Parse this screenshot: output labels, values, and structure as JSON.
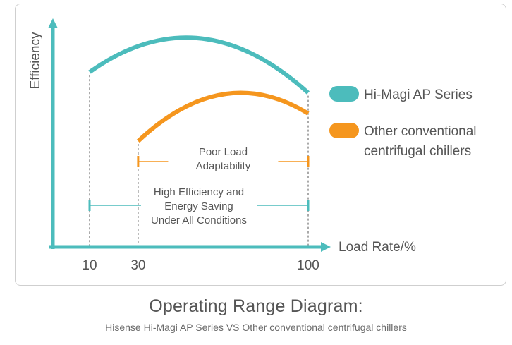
{
  "chart_data": {
    "type": "line",
    "ylabel": "Efficiency",
    "xlabel": "Load Rate/%",
    "x_ticks": [
      "10",
      "30",
      "100"
    ],
    "xlim": [
      0,
      110
    ],
    "ylim": [
      0,
      1
    ],
    "series": [
      {
        "name": "Hi-Magi AP Series",
        "color": "#4cbcbc",
        "x_range": [
          10,
          100
        ],
        "y_start": 0.76,
        "y_peak": 0.91,
        "x_peak": 50,
        "y_end": 0.67
      },
      {
        "name": "Other conventional centrifugal chillers",
        "color": "#f5961e",
        "x_range": [
          30,
          100
        ],
        "y_start": 0.46,
        "y_peak": 0.67,
        "x_peak": 72,
        "y_end": 0.58
      }
    ],
    "annotations": [
      {
        "text": [
          "Poor Load",
          "Adaptability"
        ],
        "color": "#f5961e",
        "x_range": [
          30,
          100
        ]
      },
      {
        "text": [
          "High Efficiency and",
          "Energy Saving",
          "Under All Conditions"
        ],
        "color": "#4cbcbc",
        "x_range": [
          10,
          100
        ]
      }
    ],
    "legend_position": "right"
  },
  "legend": {
    "items": [
      {
        "label": [
          "Hi-Magi AP Series"
        ],
        "color": "#4cbcbc"
      },
      {
        "label": [
          "Other conventional",
          "centrifugal chillers"
        ],
        "color": "#f5961e"
      }
    ]
  },
  "caption": {
    "title": "Operating Range Diagram:",
    "subtitle": "Hisense Hi-Magi AP Series VS Other conventional centrifugal chillers"
  },
  "colors": {
    "axis": "#4cbcbc",
    "guide": "#555555",
    "text": "#555555"
  }
}
